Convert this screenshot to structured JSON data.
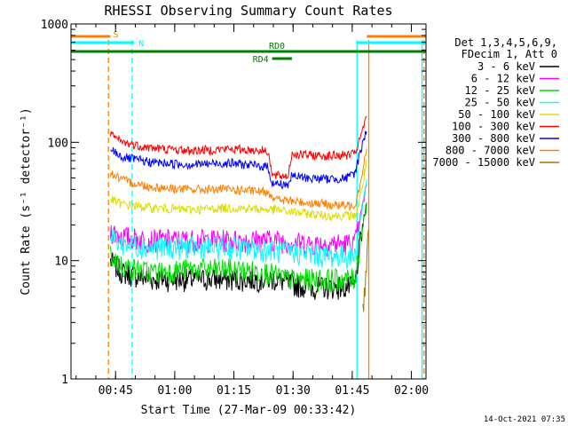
{
  "colors": {
    "background": "#ffffff",
    "axis": "#000000",
    "band_3_6": "#000000",
    "band_6_12": "#ff00ff",
    "band_12_25": "#00dd00",
    "band_25_50": "#00ffff",
    "band_50_100": "#dddd00",
    "band_100_300": "#ff0000",
    "band_300_800": "#0000ff",
    "band_800_7000": "#ff8000",
    "band_7000_15000": "#aa7700",
    "night_marker": "#00ffff",
    "saa_marker": "#ff8000",
    "decim_marker": "#008000"
  },
  "chart_data": {
    "type": "line",
    "title": "RHESSI Observing Summary Count Rates",
    "xlabel": "Start Time (27-Mar-09 00:33:42)",
    "ylabel": "Count Rate (s⁻¹ detector⁻¹)",
    "y_scale": "log",
    "ylim": [
      1,
      1000
    ],
    "xlim_min": [
      0,
      90
    ],
    "x_unit": "minutes after 00:33:42",
    "x_ticks": [
      {
        "label": "00:45",
        "value": 11.3
      },
      {
        "label": "01:00",
        "value": 26.3
      },
      {
        "label": "01:15",
        "value": 41.3
      },
      {
        "label": "01:30",
        "value": 56.3
      },
      {
        "label": "01:45",
        "value": 71.3
      },
      {
        "label": "02:00",
        "value": 86.3
      }
    ],
    "y_ticks": [
      {
        "label": "1",
        "value": 1
      },
      {
        "label": "10",
        "value": 10
      },
      {
        "label": "100",
        "value": 100
      },
      {
        "label": "1000",
        "value": 1000
      }
    ],
    "legend_position": "right",
    "legend_header": [
      "Det 1,3,4,5,6,9,",
      "FDecim 1, Att 0"
    ],
    "series": [
      {
        "name": "3 - 6 keV",
        "color_key": "band_3_6",
        "x": [
          10,
          13,
          20,
          30,
          40,
          50,
          52,
          55,
          60,
          65,
          70,
          72,
          73,
          74,
          75
        ],
        "y": [
          10,
          8,
          7,
          7,
          7,
          7,
          7,
          6.5,
          6,
          6,
          6,
          6,
          12,
          20,
          30
        ]
      },
      {
        "name": "6 - 12 keV",
        "color_key": "band_6_12",
        "x": [
          10,
          13,
          20,
          30,
          40,
          50,
          52,
          55,
          60,
          65,
          70,
          72,
          73,
          74,
          75
        ],
        "y": [
          18,
          16,
          15,
          15,
          15,
          15,
          15,
          14.5,
          14,
          14,
          14,
          14,
          20,
          30,
          45
        ]
      },
      {
        "name": "12 - 25 keV",
        "color_key": "band_12_25",
        "x": [
          10,
          13,
          20,
          30,
          40,
          50,
          52,
          55,
          60,
          65,
          70,
          72,
          73,
          74,
          75
        ],
        "y": [
          11,
          9,
          8,
          8.5,
          8.5,
          8,
          7.5,
          7,
          7,
          7,
          7,
          7,
          12,
          20,
          30
        ]
      },
      {
        "name": "25 - 50 keV",
        "color_key": "band_25_50",
        "x": [
          10,
          13,
          20,
          30,
          40,
          50,
          52,
          55,
          60,
          65,
          70,
          72,
          73,
          74,
          75
        ],
        "y": [
          16,
          14,
          13,
          13,
          13,
          12.5,
          12,
          12,
          11.5,
          11,
          11,
          11,
          18,
          30,
          50
        ]
      },
      {
        "name": "50 - 100 keV",
        "color_key": "band_50_100",
        "x": [
          10,
          13,
          20,
          30,
          40,
          50,
          52,
          55,
          60,
          65,
          70,
          72,
          73,
          74,
          75
        ],
        "y": [
          33,
          30,
          28,
          27,
          28,
          27,
          27,
          26,
          25,
          24,
          24,
          24,
          30,
          45,
          70
        ]
      },
      {
        "name": "100 - 300 keV",
        "color_key": "band_100_300",
        "x": [
          10,
          13,
          20,
          30,
          40,
          50,
          51,
          55,
          56,
          60,
          65,
          70,
          72,
          73,
          74,
          75
        ],
        "y": [
          115,
          100,
          90,
          85,
          88,
          85,
          52,
          52,
          80,
          78,
          77,
          78,
          80,
          100,
          130,
          160
        ]
      },
      {
        "name": "300 - 800 keV",
        "color_key": "band_300_800",
        "x": [
          10,
          13,
          20,
          30,
          40,
          50,
          51,
          55,
          56,
          60,
          65,
          70,
          72,
          73,
          74,
          75
        ],
        "y": [
          88,
          75,
          68,
          65,
          67,
          62,
          45,
          44,
          52,
          50,
          49,
          50,
          55,
          75,
          100,
          130
        ]
      },
      {
        "name": "800 - 7000 keV",
        "color_key": "band_800_7000",
        "x": [
          10,
          13,
          20,
          30,
          40,
          50,
          52,
          55,
          60,
          65,
          70,
          72,
          73,
          74,
          75
        ],
        "y": [
          55,
          48,
          42,
          40,
          40,
          38,
          33,
          32,
          31,
          30,
          29,
          30,
          40,
          60,
          90
        ]
      },
      {
        "name": "7000 - 15000 keV",
        "color_key": "band_7000_15000",
        "x": [
          74,
          74.5,
          75,
          75.5
        ],
        "y": [
          4,
          6,
          10,
          20
        ]
      }
    ],
    "annotations": [
      {
        "label": "S",
        "color_key": "saa_marker",
        "row": "upper",
        "bars_min": [
          [
            0,
            10
          ],
          [
            75,
            90
          ]
        ]
      },
      {
        "label": "N",
        "color_key": "night_marker",
        "row": "middle",
        "bars_min": [
          [
            0,
            16
          ],
          [
            72.5,
            90
          ]
        ]
      },
      {
        "label": "RD0",
        "color_key": "decim_marker",
        "row": "lower",
        "bars_min": [
          [
            0,
            90
          ]
        ]
      },
      {
        "label": "RD4",
        "color_key": "decim_marker",
        "row": "below",
        "bars_min": [
          [
            51,
            56
          ]
        ]
      }
    ],
    "vertical_markers": [
      {
        "color_key": "saa_marker",
        "style": "dashed",
        "x_min": 9.5
      },
      {
        "color_key": "night_marker",
        "style": "dashed",
        "x_min": 15.5
      },
      {
        "color_key": "night_marker",
        "style": "solid",
        "x_min": 72.5
      },
      {
        "color_key": "saa_marker",
        "style": "solid",
        "x_min": 75.5
      },
      {
        "color_key": "night_marker",
        "style": "solid",
        "x_min": 89
      },
      {
        "color_key": "saa_marker",
        "style": "dashed",
        "x_min": 89.5
      }
    ]
  },
  "footer_date": "14-Oct-2021 07:35"
}
